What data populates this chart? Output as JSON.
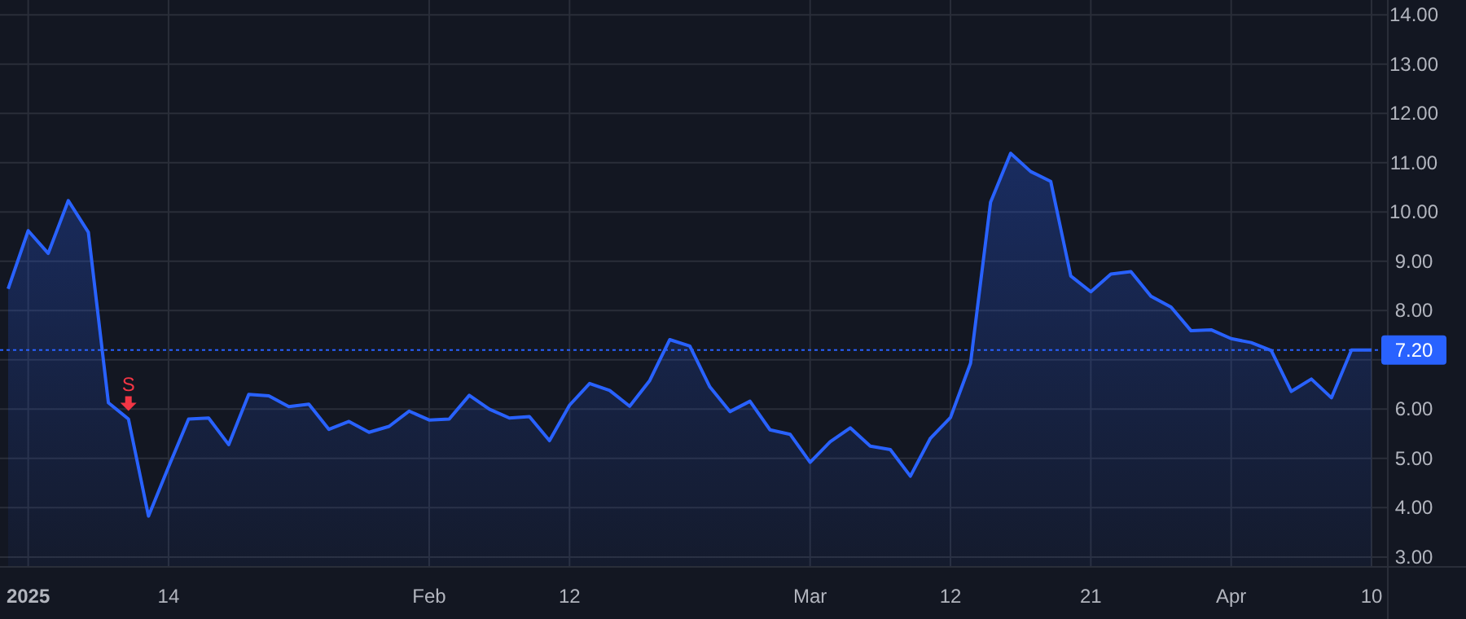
{
  "chart_data": {
    "type": "area",
    "categories": [
      null,
      "2025",
      null,
      null,
      null,
      null,
      null,
      null,
      "14",
      null,
      null,
      null,
      null,
      null,
      null,
      null,
      null,
      null,
      null,
      null,
      null,
      "Feb",
      null,
      null,
      null,
      null,
      null,
      null,
      "12",
      null,
      null,
      null,
      null,
      null,
      null,
      null,
      null,
      null,
      null,
      null,
      "Mar",
      null,
      null,
      null,
      null,
      null,
      null,
      "12",
      null,
      null,
      null,
      null,
      null,
      null,
      "21",
      null,
      null,
      null,
      null,
      null,
      null,
      "Apr",
      null,
      null,
      null,
      null,
      null,
      null,
      "10"
    ],
    "series": [
      {
        "color": "#2962ff",
        "values": [
          8.44,
          9.62,
          9.16,
          10.23,
          9.59,
          6.13,
          5.8,
          3.83,
          4.83,
          5.8,
          5.82,
          5.28,
          6.3,
          6.27,
          6.05,
          6.1,
          5.59,
          5.75,
          5.53,
          5.65,
          5.96,
          5.78,
          5.8,
          6.28,
          6.0,
          5.82,
          5.85,
          5.36,
          6.08,
          6.52,
          6.38,
          6.06,
          6.58,
          7.41,
          7.28,
          6.45,
          5.95,
          6.16,
          5.58,
          5.49,
          4.92,
          5.34,
          5.62,
          5.25,
          5.18,
          4.64,
          5.41,
          5.83,
          6.93,
          10.2,
          11.19,
          10.82,
          10.62,
          8.7,
          8.38,
          8.74,
          8.79,
          8.29,
          8.07,
          7.59,
          7.61,
          7.43,
          7.35,
          7.19,
          6.36,
          6.61,
          6.23,
          7.2,
          7.2
        ]
      }
    ],
    "ylim": [
      2.8,
      14.3
    ],
    "yticks": [
      {
        "value": 3,
        "label": "3.00"
      },
      {
        "value": 4,
        "label": "4.00"
      },
      {
        "value": 5,
        "label": "5.00"
      },
      {
        "value": 6,
        "label": "6.00"
      },
      {
        "value": 7,
        "label": null
      },
      {
        "value": 8,
        "label": "8.00"
      },
      {
        "value": 9,
        "label": "9.00"
      },
      {
        "value": 10,
        "label": "10.00"
      },
      {
        "value": 11,
        "label": "11.00"
      },
      {
        "value": 12,
        "label": "12.00"
      },
      {
        "value": 13,
        "label": "13.00"
      },
      {
        "value": 14,
        "label": "14.00"
      }
    ],
    "ref_lines": [
      {
        "axis": "y",
        "value": 7.2,
        "label": "7.20",
        "color": "#2962ff",
        "line_style": "dotted"
      }
    ],
    "annotations": [
      {
        "text": "S",
        "y": 5.8
      }
    ],
    "grid": true
  }
}
